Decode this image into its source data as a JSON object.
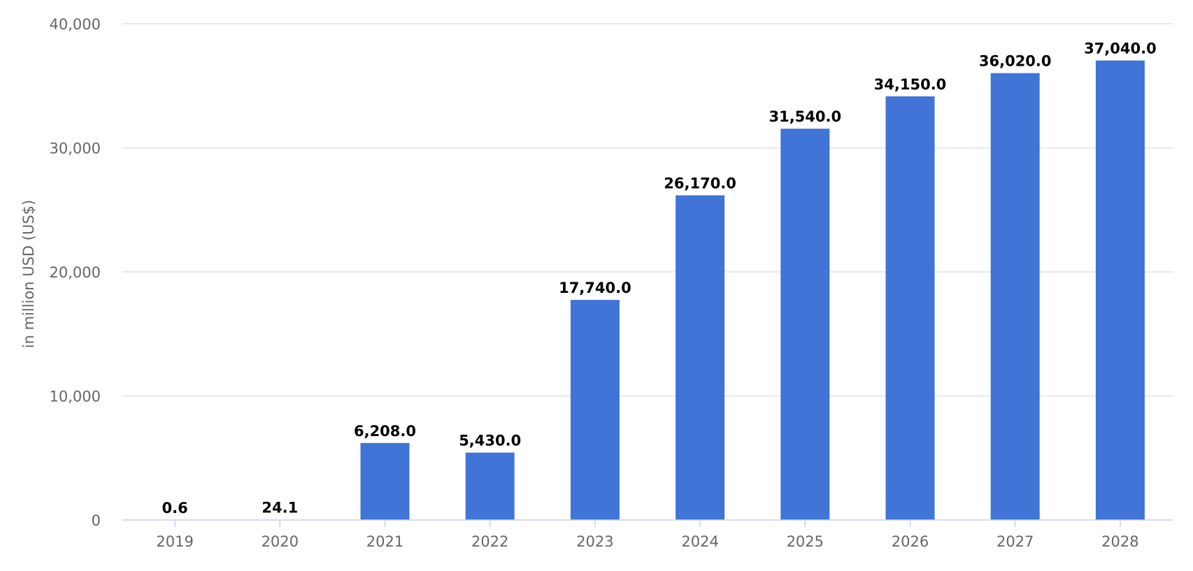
{
  "chart_data": {
    "type": "bar",
    "title": "",
    "xlabel": "",
    "ylabel": "in million USD (US$)",
    "categories": [
      "2019",
      "2020",
      "2021",
      "2022",
      "2023",
      "2024",
      "2025",
      "2026",
      "2027",
      "2028"
    ],
    "values": [
      0.6,
      24.1,
      6208.0,
      5430.0,
      17740.0,
      26170.0,
      31540.0,
      34150.0,
      36020.0,
      37040.0
    ],
    "data_labels": [
      "0.6",
      "24.1",
      "6,208.0",
      "5,430.0",
      "17,740.0",
      "26,170.0",
      "31,540.0",
      "34,150.0",
      "36,020.0",
      "37,040.0"
    ],
    "ylim": [
      0,
      40000
    ],
    "yticks": [
      0,
      10000,
      20000,
      30000,
      40000
    ],
    "ytick_labels": [
      "0",
      "10,000",
      "20,000",
      "30,000",
      "40,000"
    ],
    "grid": true,
    "legend": "none",
    "bar_color": "#4074d6"
  }
}
